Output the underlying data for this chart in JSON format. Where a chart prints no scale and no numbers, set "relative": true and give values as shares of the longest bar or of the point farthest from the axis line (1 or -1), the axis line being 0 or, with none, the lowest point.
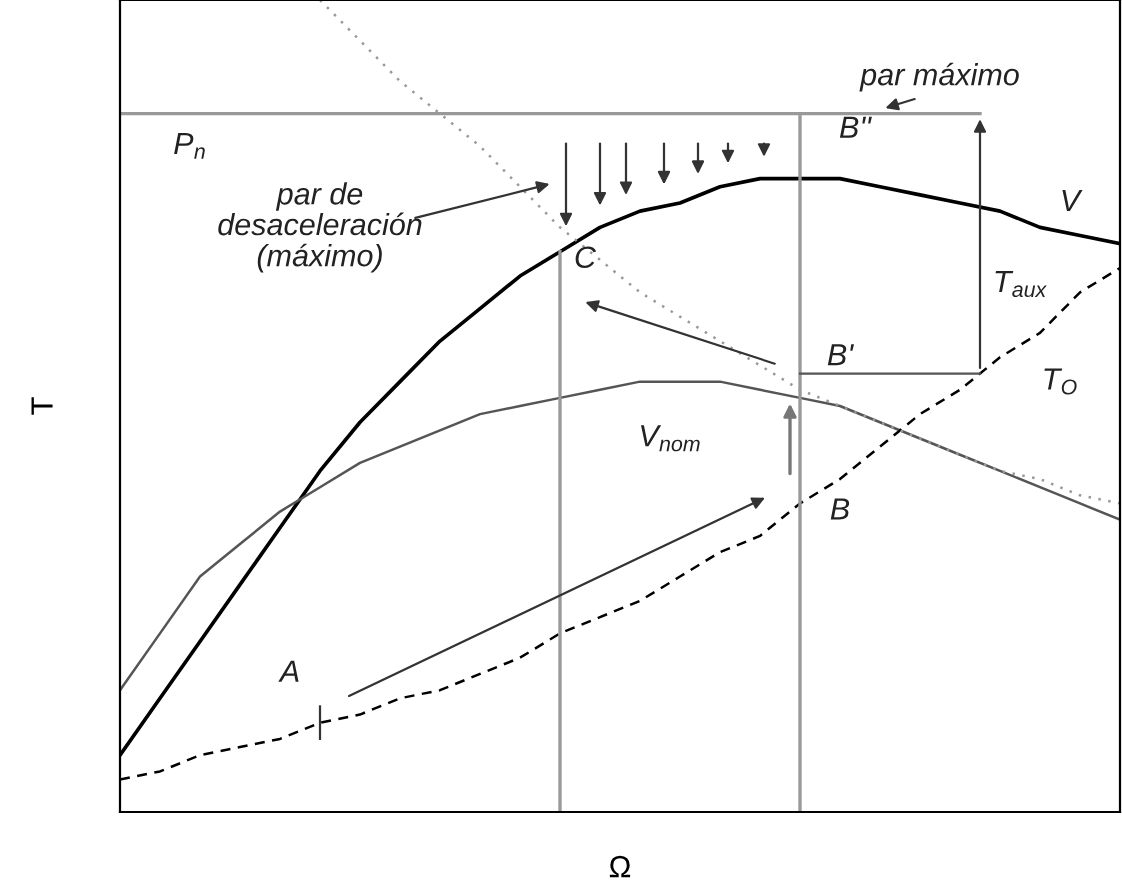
{
  "chart_data": {
    "type": "line",
    "relative": true,
    "xlabel": "Ω",
    "ylabel": "T",
    "categories": [
      null,
      null,
      null,
      null,
      null,
      null,
      null,
      null,
      null,
      null,
      null,
      null,
      null,
      null,
      null,
      null,
      null,
      null,
      null,
      null,
      null,
      null,
      null,
      null,
      null,
      null
    ],
    "series": [
      {
        "color": "#000000",
        "line_style": "solid",
        "values": [
          0.07,
          0.14,
          0.21,
          0.28,
          0.35,
          0.42,
          0.48,
          0.53,
          0.58,
          0.62,
          0.66,
          0.69,
          0.72,
          0.74,
          0.75,
          0.77,
          0.78,
          0.78,
          0.78,
          0.77,
          0.76,
          0.75,
          0.74,
          0.72,
          0.71,
          0.7
        ]
      },
      {
        "color": "#555555",
        "line_style": "solid",
        "values": [
          0.15,
          0.22,
          0.29,
          0.33,
          0.37,
          0.4,
          0.43,
          0.45,
          0.47,
          0.49,
          0.5,
          0.51,
          0.52,
          0.53,
          0.53,
          0.53,
          0.52,
          0.51,
          0.5,
          0.48,
          0.46,
          0.44,
          0.42,
          0.4,
          0.38,
          0.36
        ]
      },
      {
        "color": "#000000",
        "line_style": "dashed",
        "values": [
          0.04,
          0.05,
          0.07,
          0.08,
          0.09,
          0.11,
          0.12,
          0.14,
          0.15,
          0.17,
          0.19,
          0.22,
          0.24,
          0.26,
          0.29,
          0.32,
          0.34,
          0.38,
          0.41,
          0.45,
          0.49,
          0.52,
          0.56,
          0.59,
          0.64,
          0.67
        ]
      },
      {
        "color": "#999999",
        "line_style": "dotted",
        "values": [
          null,
          null,
          null,
          null,
          null,
          1.0,
          0.95,
          0.9,
          0.86,
          0.82,
          0.77,
          0.72,
          0.68,
          0.64,
          0.61,
          0.58,
          0.55,
          0.52,
          0.5,
          0.48,
          0.46,
          0.44,
          0.42,
          0.41,
          0.39,
          0.38
        ]
      }
    ],
    "ref_lines": [
      {
        "axis": "y",
        "value": 0.86,
        "color": "#999999"
      }
    ],
    "annotations": [
      "P$_{n}$",
      "par máximo",
      "par de\ndesaceleración\n(máximo)",
      "B''",
      "V",
      "C",
      "T$_{aux}$",
      "B'",
      "T$_{O}$",
      "V$_{nom}$",
      "B",
      "A"
    ]
  }
}
